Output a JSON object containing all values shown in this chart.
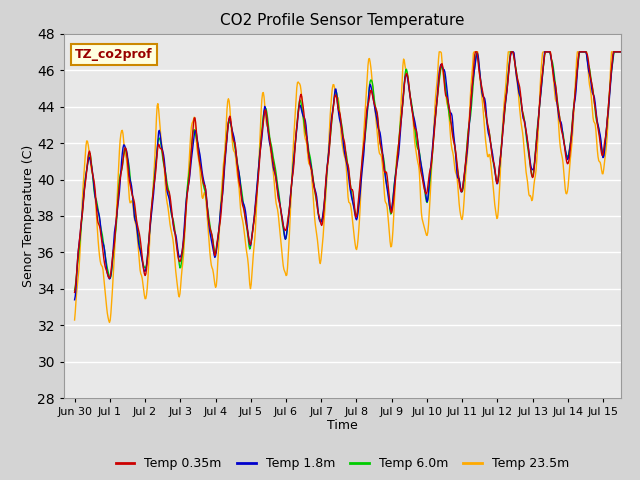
{
  "title": "CO2 Profile Sensor Temperature",
  "xlabel": "Time",
  "ylabel": "Senor Temperature (C)",
  "ylim": [
    28,
    48
  ],
  "xlim": [
    -0.3,
    15.5
  ],
  "xtick_labels": [
    "Jun 30",
    "Jul 1",
    "Jul 2",
    "Jul 3",
    "Jul 4",
    "Jul 5",
    "Jul 6",
    "Jul 7",
    "Jul 8",
    "Jul 9",
    "Jul 10",
    "Jul 11",
    "Jul 12",
    "Jul 13",
    "Jul 14",
    "Jul 15"
  ],
  "xtick_positions": [
    0,
    1,
    2,
    3,
    4,
    5,
    6,
    7,
    8,
    9,
    10,
    11,
    12,
    13,
    14,
    15
  ],
  "ytick_positions": [
    28,
    30,
    32,
    34,
    36,
    38,
    40,
    42,
    44,
    46,
    48
  ],
  "colors": {
    "temp035": "#cc0000",
    "temp18": "#0000cc",
    "temp60": "#00cc00",
    "temp235": "#ffaa00"
  },
  "legend_label_035": "Temp 0.35m",
  "legend_label_18": "Temp 1.8m",
  "legend_label_60": "Temp 6.0m",
  "legend_label_235": "Temp 23.5m",
  "annotation_text": "TZ_co2prof",
  "bg_color": "#e8e8e8",
  "grid_color": "white",
  "linewidth": 1.0,
  "fig_width": 6.4,
  "fig_height": 4.8,
  "dpi": 100
}
